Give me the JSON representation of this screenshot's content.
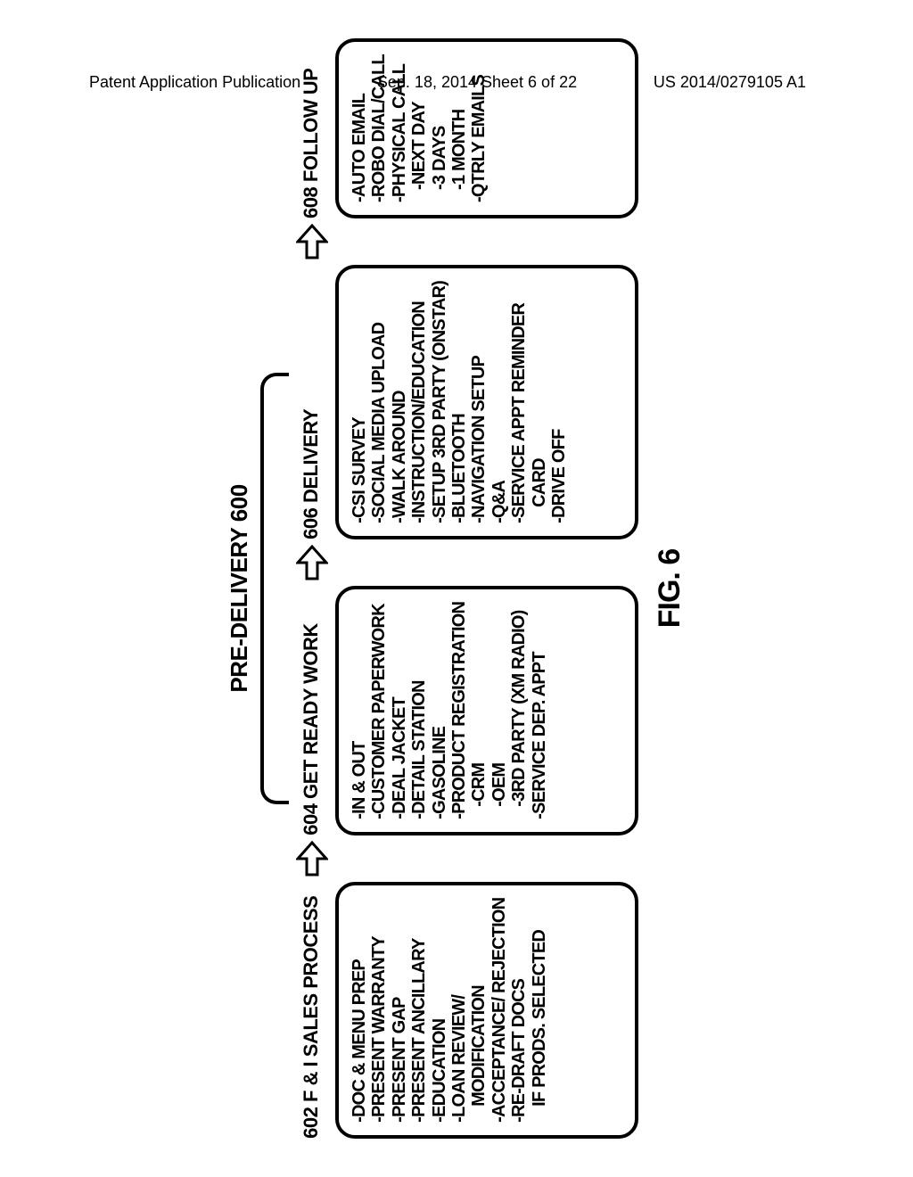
{
  "header": {
    "left": "Patent Application Publication",
    "center": "Sep. 18, 2014  Sheet 6 of 22",
    "right": "US 2014/0279105 A1"
  },
  "figure": {
    "top_label": "PRE-DELIVERY 600",
    "caption": "FIG. 6",
    "columns": [
      {
        "title": "602 F & I SALES PROCESS",
        "items": [
          {
            "t": "-DOC & MENU PREP"
          },
          {
            "t": "-PRESENT WARRANTY"
          },
          {
            "t": "-PRESENT GAP"
          },
          {
            "t": "-PRESENT ANCILLARY"
          },
          {
            "t": "-EDUCATION"
          },
          {
            "t": "-LOAN REVIEW/"
          },
          {
            "t": "MODIFICATION",
            "sub": true
          },
          {
            "t": "-ACCEPTANCE/ REJECTION"
          },
          {
            "t": "-RE-DRAFT DOCS"
          },
          {
            "t": "IF PRODS. SELECTED",
            "sub": true
          }
        ]
      },
      {
        "title": "604 GET READY WORK",
        "items": [
          {
            "t": "-IN & OUT"
          },
          {
            "t": "-CUSTOMER PAPERWORK"
          },
          {
            "t": "-DEAL JACKET"
          },
          {
            "t": "-DETAIL STATION"
          },
          {
            "t": "-GASOLINE"
          },
          {
            "t": "-PRODUCT REGISTRATION"
          },
          {
            "t": "-CRM",
            "sub2": true
          },
          {
            "t": "-OEM",
            "sub2": true
          },
          {
            "t": "-3RD PARTY (XM RADIO)",
            "sub2": true
          },
          {
            "t": "-SERVICE DEP.  APPT"
          }
        ]
      },
      {
        "title": "606 DELIVERY",
        "items": [
          {
            "t": "-CSI SURVEY"
          },
          {
            "t": "-SOCIAL MEDIA UPLOAD"
          },
          {
            "t": "-WALK AROUND"
          },
          {
            "t": "-INSTRUCTION/EDUCATION"
          },
          {
            "t": "-SETUP 3RD PARTY (ONSTAR)"
          },
          {
            "t": "-BLUETOOTH"
          },
          {
            "t": "-NAVIGATION SETUP"
          },
          {
            "t": "-Q&A"
          },
          {
            "t": "-SERVICE APPT REMINDER"
          },
          {
            "t": "CARD",
            "sub": true
          },
          {
            "t": "-DRIVE OFF"
          }
        ]
      },
      {
        "title": "608 FOLLOW UP",
        "items": [
          {
            "t": "-AUTO EMAIL"
          },
          {
            "t": "-ROBO DIAL/CALL"
          },
          {
            "t": "-PHYSICAL CALL"
          },
          {
            "t": "-NEXT DAY",
            "sub2": true
          },
          {
            "t": "-3 DAYS",
            "sub2": true
          },
          {
            "t": "-1 MONTH",
            "sub2": true
          },
          {
            "t": "-QTRLY EMAILS"
          }
        ]
      }
    ]
  }
}
